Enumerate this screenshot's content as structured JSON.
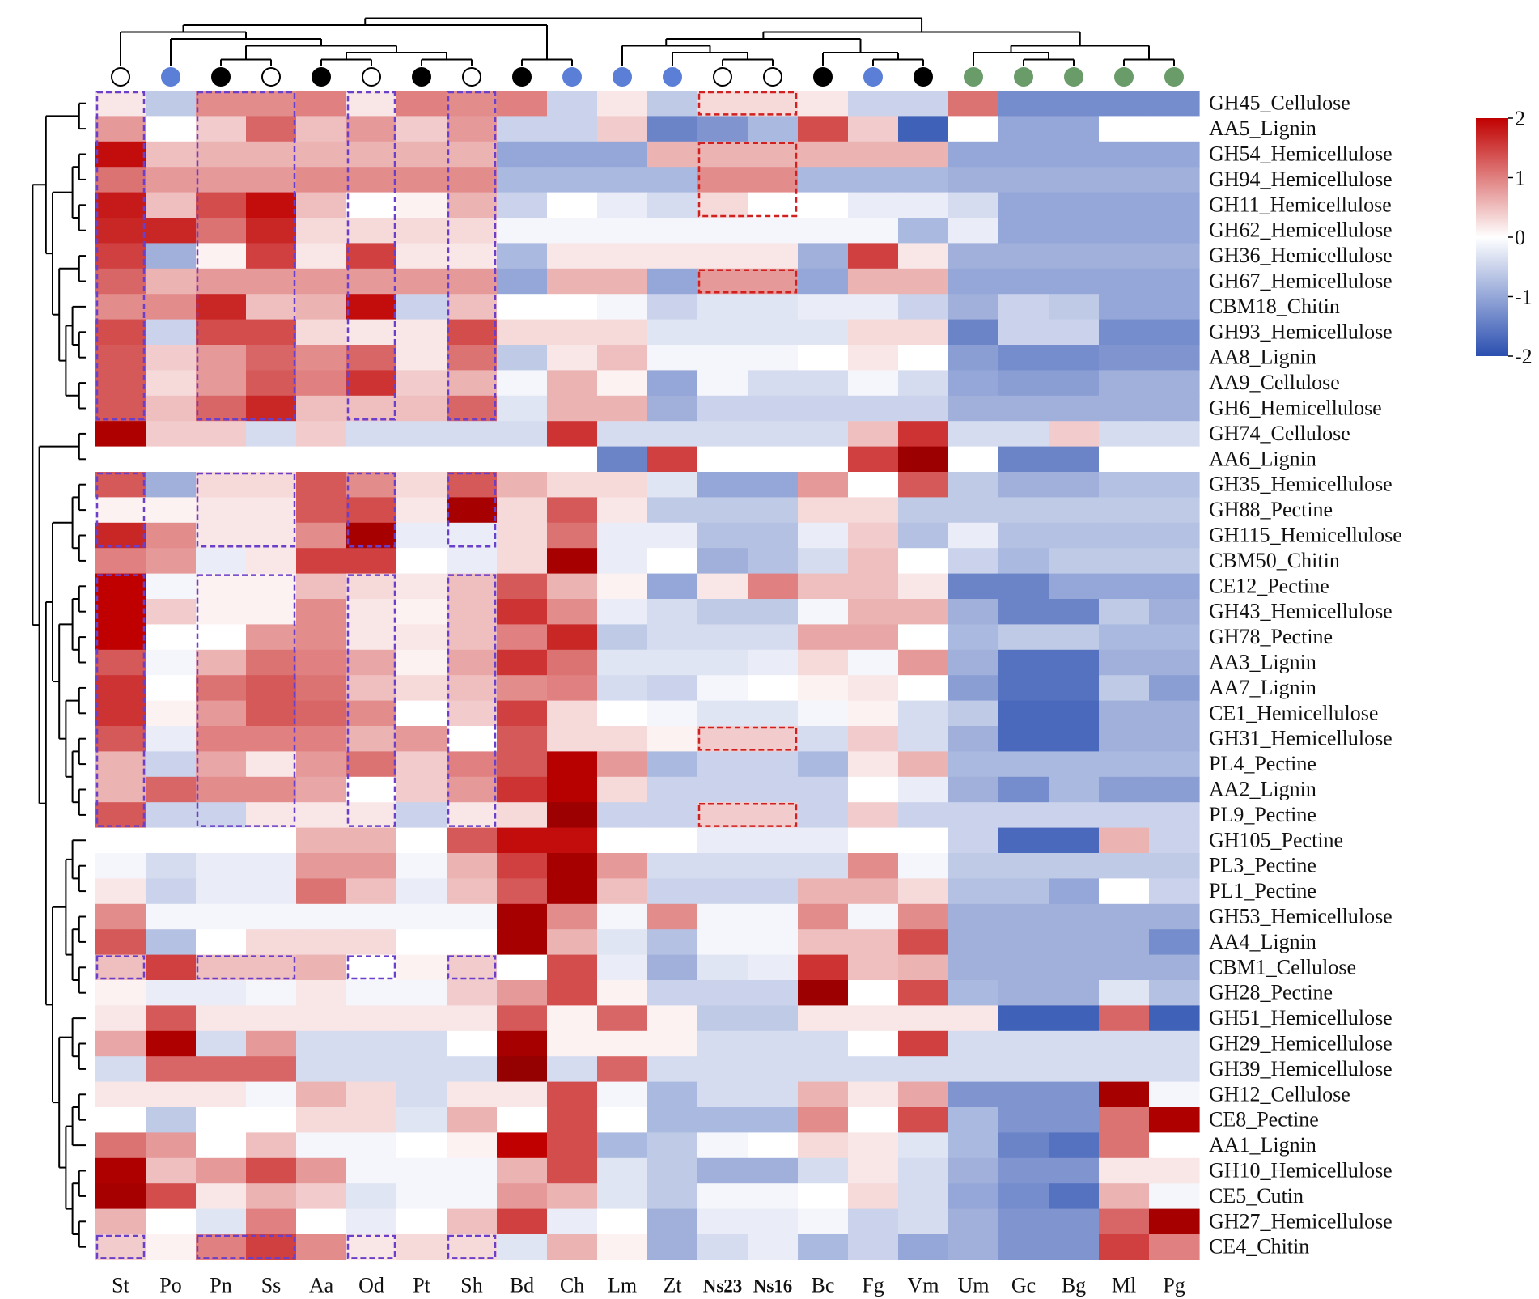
{
  "chart_data": {
    "type": "heatmap",
    "title": "",
    "columns": [
      "St",
      "Po",
      "Pn",
      "Ss",
      "Aa",
      "Od",
      "Pt",
      "Sh",
      "Bd",
      "Ch",
      "Lm",
      "Zt",
      "Ns23",
      "Ns16",
      "Bc",
      "Fg",
      "Vm",
      "Um",
      "Gc",
      "Bg",
      "Ml",
      "Pg"
    ],
    "bold_columns": [
      "Ns23",
      "Ns16"
    ],
    "column_markers": [
      "open",
      "blue",
      "black",
      "open",
      "black",
      "open",
      "black",
      "open",
      "black",
      "blue",
      "blue",
      "blue",
      "open",
      "open",
      "black",
      "blue",
      "black",
      "green",
      "green",
      "green",
      "green",
      "green"
    ],
    "marker_colors": {
      "black": "#000000",
      "blue": "#5b7fd6",
      "green": "#6a9c6a",
      "open": "#ffffff"
    },
    "rows": [
      "GH45_Cellulose",
      "AA5_Lignin",
      "GH54_Hemicellulose",
      "GH94_Hemicellulose",
      "GH11_Hemicellulose",
      "GH62_Hemicellulose",
      "GH36_Hemicellulose",
      "GH67_Hemicellulose",
      "CBM18_Chitin",
      "GH93_Hemicellulose",
      "AA8_Lignin",
      "AA9_Cellulose",
      "GH6_Hemicellulose",
      "GH74_Cellulose",
      "AA6_Lignin",
      "GH35_Hemicellulose",
      "GH88_Pectine",
      "GH115_Hemicellulose",
      "CBM50_Chitin",
      "CE12_Pectine",
      "GH43_Hemicellulose",
      "GH78_Pectine",
      "AA3_Lignin",
      "AA7_Lignin",
      "CE1_Hemicellulose",
      "GH31_Hemicellulose",
      "PL4_Pectine",
      "AA2_Lignin",
      "PL9_Pectine",
      "GH105_Pectine",
      "PL3_Pectine",
      "PL1_Pectine",
      "GH53_Hemicellulose",
      "AA4_Lignin",
      "CBM1_Cellulose",
      "GH28_Pectine",
      "GH51_Hemicellulose",
      "GH29_Hemicellulose",
      "GH39_Hemicellulose",
      "GH12_Cellulose",
      "CE8_Pectine",
      "AA1_Lignin",
      "GH10_Hemicellulose",
      "CE5_Cutin",
      "GH27_Hemicellulose",
      "CE4_Chitin"
    ],
    "values": [
      [
        0.2,
        -0.6,
        0.9,
        0.9,
        1.0,
        0.2,
        1.0,
        0.9,
        1.0,
        -0.5,
        0.2,
        -0.6,
        0.3,
        0.3,
        0.2,
        -0.5,
        -0.5,
        1.1,
        -1.3,
        -1.3,
        -1.3,
        -1.3
      ],
      [
        0.8,
        0.0,
        0.4,
        1.2,
        0.5,
        0.8,
        0.4,
        0.8,
        -0.5,
        -0.5,
        0.4,
        -1.4,
        -1.2,
        -0.8,
        1.4,
        0.4,
        -1.8,
        0.0,
        -1.0,
        -1.0,
        0.0,
        0.0
      ],
      [
        1.9,
        0.5,
        0.6,
        0.6,
        0.6,
        0.6,
        0.6,
        0.6,
        -1.0,
        -1.0,
        -1.0,
        0.6,
        0.6,
        0.6,
        0.6,
        0.6,
        0.6,
        -1.0,
        -1.0,
        -1.0,
        -1.0,
        -1.0
      ],
      [
        1.1,
        0.8,
        0.8,
        0.8,
        0.9,
        0.9,
        0.9,
        0.9,
        -0.8,
        -0.8,
        -0.8,
        -0.8,
        0.9,
        0.9,
        -0.8,
        -0.8,
        -0.8,
        -0.9,
        -0.9,
        -0.9,
        -0.9,
        -0.9
      ],
      [
        1.8,
        0.5,
        1.4,
        1.9,
        0.5,
        0.0,
        0.1,
        0.6,
        -0.5,
        0.0,
        -0.2,
        -0.4,
        0.3,
        0.0,
        0.0,
        -0.2,
        -0.2,
        -0.4,
        -1.0,
        -1.0,
        -1.0,
        -1.0
      ],
      [
        1.7,
        1.7,
        1.1,
        1.7,
        0.3,
        0.3,
        0.3,
        0.3,
        -0.1,
        -0.1,
        -0.1,
        -0.1,
        -0.1,
        -0.1,
        -0.1,
        -0.1,
        -0.8,
        -0.2,
        -1.0,
        -1.0,
        -1.0,
        -1.0
      ],
      [
        1.5,
        -0.9,
        0.1,
        1.5,
        0.2,
        1.5,
        0.2,
        0.2,
        -0.8,
        0.2,
        0.2,
        0.2,
        0.2,
        0.2,
        -0.9,
        1.5,
        0.2,
        -0.9,
        -0.9,
        -0.9,
        -0.9,
        -0.9
      ],
      [
        1.2,
        0.6,
        0.8,
        0.8,
        0.8,
        0.8,
        0.8,
        0.8,
        -1.0,
        0.6,
        0.6,
        -1.0,
        0.8,
        0.8,
        -1.0,
        0.6,
        0.6,
        -1.0,
        -1.0,
        -1.0,
        -1.0,
        -1.0
      ],
      [
        0.9,
        0.9,
        1.7,
        0.5,
        0.6,
        1.9,
        -0.5,
        0.5,
        0.0,
        0.0,
        -0.1,
        -0.5,
        -0.3,
        -0.3,
        -0.2,
        -0.2,
        -0.5,
        -0.9,
        -0.5,
        -0.6,
        -1.0,
        -1.0
      ],
      [
        1.4,
        -0.5,
        1.4,
        1.4,
        0.3,
        0.2,
        0.2,
        1.4,
        0.3,
        0.3,
        0.3,
        -0.3,
        -0.3,
        -0.3,
        -0.3,
        0.3,
        0.3,
        -1.4,
        -0.5,
        -0.5,
        -1.3,
        -1.3
      ],
      [
        1.3,
        0.4,
        0.8,
        1.2,
        0.9,
        1.2,
        0.2,
        1.1,
        -0.6,
        0.2,
        0.5,
        -0.1,
        -0.1,
        -0.1,
        0.0,
        0.2,
        0.0,
        -1.1,
        -1.3,
        -1.3,
        -1.2,
        -1.2
      ],
      [
        1.3,
        0.3,
        0.8,
        1.3,
        1.0,
        1.6,
        0.4,
        0.6,
        -0.1,
        0.6,
        0.1,
        -1.0,
        -0.1,
        -0.4,
        -0.4,
        -0.1,
        -0.4,
        -1.0,
        -1.1,
        -1.1,
        -0.9,
        -0.9
      ],
      [
        1.3,
        0.5,
        1.2,
        1.7,
        0.5,
        0.5,
        0.5,
        1.2,
        -0.3,
        0.6,
        0.6,
        -0.9,
        -0.5,
        -0.5,
        -0.5,
        -0.5,
        -0.5,
        -0.9,
        -0.9,
        -0.9,
        -0.9,
        -0.9
      ],
      [
        2.2,
        0.4,
        0.4,
        -0.4,
        0.4,
        -0.4,
        -0.4,
        -0.4,
        -0.4,
        1.6,
        -0.4,
        -0.4,
        -0.4,
        -0.4,
        -0.4,
        0.5,
        1.6,
        -0.4,
        -0.4,
        0.4,
        -0.4,
        -0.4
      ],
      [
        0.0,
        0.0,
        0.0,
        0.0,
        0.0,
        0.0,
        0.0,
        0.0,
        0.0,
        0.0,
        -1.4,
        1.5,
        0.0,
        0.0,
        0.0,
        1.5,
        2.4,
        0.0,
        -1.4,
        -1.4,
        0.0,
        0.0
      ],
      [
        1.3,
        -0.9,
        0.3,
        0.3,
        1.3,
        0.9,
        0.3,
        1.3,
        0.6,
        0.3,
        0.3,
        -0.3,
        -1.0,
        -1.0,
        0.8,
        0.0,
        1.3,
        -0.6,
        -0.9,
        -0.9,
        -0.7,
        -0.7
      ],
      [
        0.1,
        0.1,
        0.2,
        0.2,
        1.3,
        1.4,
        0.2,
        2.3,
        0.3,
        1.3,
        0.2,
        -0.6,
        -0.6,
        -0.6,
        0.3,
        0.3,
        -0.6,
        -0.6,
        -0.6,
        -0.6,
        -0.6,
        -0.6
      ],
      [
        1.7,
        0.9,
        0.2,
        0.2,
        0.9,
        2.3,
        -0.2,
        -0.2,
        0.3,
        1.1,
        -0.2,
        -0.2,
        -0.7,
        -0.7,
        -0.2,
        0.4,
        -0.7,
        -0.2,
        -0.7,
        -0.7,
        -0.7,
        -0.7
      ],
      [
        1.0,
        0.8,
        -0.2,
        0.2,
        1.5,
        1.5,
        0.0,
        -0.2,
        0.3,
        2.3,
        -0.2,
        0.0,
        -0.9,
        -0.7,
        -0.4,
        0.5,
        0.0,
        -0.5,
        -0.8,
        -0.6,
        -0.6,
        -0.6
      ],
      [
        2.0,
        -0.1,
        0.1,
        0.1,
        0.5,
        0.3,
        0.2,
        0.5,
        1.3,
        0.6,
        0.1,
        -1.0,
        0.2,
        1.0,
        0.5,
        0.5,
        0.2,
        -1.4,
        -1.4,
        -1.0,
        -1.0,
        -1.0
      ],
      [
        2.0,
        0.4,
        0.1,
        0.1,
        0.9,
        0.2,
        0.1,
        0.5,
        1.6,
        0.9,
        -0.2,
        -0.4,
        -0.6,
        -0.6,
        -0.1,
        0.6,
        0.6,
        -0.9,
        -1.4,
        -1.4,
        -0.6,
        -0.9
      ],
      [
        2.0,
        0.0,
        0.0,
        0.8,
        0.9,
        0.2,
        0.2,
        0.5,
        1.0,
        1.7,
        -0.6,
        -0.4,
        -0.4,
        -0.4,
        0.7,
        0.7,
        0.0,
        -0.8,
        -0.6,
        -0.6,
        -0.8,
        -0.8
      ],
      [
        1.3,
        -0.1,
        0.6,
        1.1,
        1.0,
        0.7,
        0.1,
        0.7,
        1.6,
        1.1,
        -0.3,
        -0.3,
        -0.3,
        -0.2,
        0.3,
        -0.1,
        0.8,
        -0.9,
        -1.6,
        -1.6,
        -0.9,
        -0.9
      ],
      [
        1.6,
        0.0,
        1.1,
        1.3,
        1.1,
        0.5,
        0.3,
        0.5,
        0.9,
        1.0,
        -0.4,
        -0.5,
        -0.1,
        0.0,
        0.1,
        0.2,
        0.0,
        -1.1,
        -1.6,
        -1.6,
        -0.6,
        -1.1
      ],
      [
        1.6,
        0.1,
        0.8,
        1.3,
        1.2,
        0.9,
        0.0,
        0.4,
        1.5,
        0.3,
        0.0,
        -0.1,
        -0.3,
        -0.3,
        -0.1,
        0.1,
        -0.4,
        -0.6,
        -1.7,
        -1.7,
        -0.9,
        -0.9
      ],
      [
        1.3,
        -0.2,
        1.0,
        1.0,
        1.0,
        0.6,
        0.8,
        0.0,
        1.3,
        0.3,
        0.3,
        0.1,
        0.4,
        0.4,
        -0.4,
        0.4,
        -0.4,
        -0.9,
        -1.7,
        -1.7,
        -0.9,
        -0.9
      ],
      [
        0.6,
        -0.5,
        0.7,
        0.2,
        0.8,
        1.1,
        0.4,
        1.0,
        1.3,
        2.1,
        0.8,
        -0.8,
        -0.5,
        -0.5,
        -0.8,
        0.2,
        0.6,
        -0.8,
        -0.8,
        -0.8,
        -0.8,
        -0.8
      ],
      [
        0.6,
        1.2,
        0.9,
        0.9,
        0.7,
        0.0,
        0.4,
        0.8,
        1.6,
        2.1,
        0.3,
        -0.5,
        -0.5,
        -0.5,
        -0.5,
        0.0,
        -0.2,
        -0.9,
        -1.3,
        -0.8,
        -1.1,
        -1.1
      ],
      [
        1.3,
        -0.5,
        -0.5,
        0.2,
        0.2,
        0.2,
        -0.5,
        0.2,
        0.3,
        2.4,
        -0.5,
        -0.5,
        0.4,
        0.4,
        -0.5,
        0.4,
        -0.5,
        -0.5,
        -0.5,
        -0.5,
        -0.5,
        -0.5
      ],
      [
        0.0,
        0.0,
        0.0,
        0.0,
        0.6,
        0.6,
        0.0,
        1.3,
        1.9,
        1.9,
        0.0,
        0.0,
        -0.2,
        -0.2,
        -0.2,
        0.0,
        0.0,
        -0.5,
        -1.7,
        -1.7,
        0.6,
        -0.5
      ],
      [
        -0.1,
        -0.4,
        -0.2,
        -0.2,
        0.8,
        0.8,
        -0.1,
        0.6,
        1.5,
        2.3,
        0.8,
        -0.4,
        -0.4,
        -0.4,
        -0.4,
        0.9,
        -0.1,
        -0.6,
        -0.6,
        -0.6,
        -0.6,
        -0.6
      ],
      [
        0.2,
        -0.5,
        -0.2,
        -0.2,
        1.1,
        0.5,
        -0.2,
        0.5,
        1.3,
        2.3,
        0.5,
        -0.5,
        -0.5,
        -0.5,
        0.6,
        0.6,
        0.3,
        -0.7,
        -0.7,
        -1.0,
        0.0,
        -0.5
      ],
      [
        0.9,
        -0.1,
        -0.1,
        -0.1,
        -0.1,
        -0.1,
        -0.1,
        -0.1,
        2.3,
        0.9,
        -0.1,
        0.9,
        -0.1,
        -0.1,
        0.9,
        -0.1,
        0.9,
        -0.9,
        -0.9,
        -0.9,
        -0.9,
        -0.9
      ],
      [
        1.3,
        -0.7,
        0.0,
        0.3,
        0.3,
        0.3,
        0.0,
        0.0,
        2.3,
        0.6,
        -0.3,
        -0.7,
        -0.1,
        -0.1,
        0.5,
        0.5,
        1.4,
        -0.9,
        -0.9,
        -0.9,
        -0.9,
        -1.3
      ],
      [
        0.5,
        1.5,
        0.5,
        0.5,
        0.6,
        0.0,
        0.1,
        0.4,
        0.0,
        1.4,
        -0.2,
        -0.9,
        -0.3,
        -0.2,
        1.6,
        0.5,
        0.6,
        -0.9,
        -0.9,
        -0.9,
        -0.9,
        -0.9
      ],
      [
        0.1,
        -0.2,
        -0.2,
        -0.1,
        0.2,
        -0.1,
        -0.1,
        0.4,
        0.8,
        1.4,
        0.1,
        -0.5,
        -0.5,
        -0.5,
        2.4,
        0.0,
        1.4,
        -0.8,
        -0.9,
        -0.9,
        -0.3,
        -0.7
      ],
      [
        0.2,
        1.3,
        0.2,
        0.2,
        0.2,
        0.2,
        0.2,
        0.2,
        1.3,
        0.1,
        1.2,
        0.1,
        -0.6,
        -0.6,
        0.2,
        0.2,
        0.2,
        0.2,
        -1.8,
        -1.8,
        1.2,
        -1.8
      ],
      [
        0.7,
        2.2,
        -0.4,
        0.8,
        -0.4,
        -0.4,
        -0.4,
        0.0,
        2.3,
        0.1,
        0.1,
        0.1,
        -0.4,
        -0.4,
        -0.4,
        0.0,
        1.5,
        -0.4,
        -0.4,
        -0.4,
        -0.4,
        -0.4
      ],
      [
        -0.4,
        1.2,
        1.2,
        1.2,
        -0.4,
        -0.4,
        -0.4,
        -0.4,
        2.5,
        -0.4,
        1.2,
        -0.4,
        -0.4,
        -0.4,
        -0.4,
        -0.4,
        -0.4,
        -0.4,
        -0.4,
        -0.4,
        -0.4,
        -0.4
      ],
      [
        0.2,
        0.2,
        0.2,
        -0.1,
        0.6,
        0.3,
        -0.4,
        0.2,
        0.2,
        1.4,
        -0.1,
        -0.8,
        -0.4,
        -0.4,
        0.6,
        0.2,
        0.7,
        -1.2,
        -1.2,
        -1.2,
        2.3,
        -0.1
      ],
      [
        0.0,
        -0.6,
        0.0,
        0.0,
        0.3,
        0.3,
        -0.3,
        0.6,
        0.0,
        1.4,
        0.0,
        -0.8,
        -0.8,
        -0.8,
        0.9,
        0.0,
        1.4,
        -0.8,
        -1.2,
        -1.2,
        1.1,
        2.2
      ],
      [
        1.1,
        0.8,
        0.0,
        0.5,
        -0.1,
        -0.1,
        0.0,
        0.1,
        2.0,
        1.4,
        -0.8,
        -0.6,
        -0.1,
        0.0,
        0.3,
        0.2,
        -0.3,
        -0.8,
        -1.4,
        -1.6,
        1.1,
        0.0
      ],
      [
        2.2,
        0.5,
        0.8,
        1.4,
        0.8,
        -0.1,
        -0.1,
        -0.1,
        0.6,
        1.4,
        -0.3,
        -0.6,
        -0.9,
        -0.9,
        -0.4,
        0.2,
        -0.4,
        -0.9,
        -1.2,
        -1.2,
        0.2,
        0.2
      ],
      [
        2.3,
        1.4,
        0.2,
        0.6,
        0.4,
        -0.3,
        -0.1,
        -0.1,
        0.8,
        0.6,
        -0.3,
        -0.6,
        -0.1,
        -0.1,
        0.0,
        0.3,
        -0.4,
        -1.0,
        -1.3,
        -1.6,
        0.6,
        -0.1
      ],
      [
        0.6,
        0.0,
        -0.3,
        1.0,
        0.0,
        -0.2,
        0.0,
        0.5,
        1.5,
        -0.2,
        0.0,
        -0.9,
        -0.2,
        -0.2,
        -0.1,
        -0.5,
        -0.4,
        -0.9,
        -1.2,
        -1.2,
        1.2,
        2.3
      ],
      [
        0.4,
        0.1,
        1.0,
        1.5,
        0.9,
        0.2,
        0.3,
        0.3,
        -0.3,
        0.6,
        0.1,
        -0.9,
        -0.4,
        -0.2,
        -0.8,
        -0.5,
        -1.0,
        -0.9,
        -1.2,
        -1.2,
        1.5,
        1.0
      ]
    ],
    "color_scale": {
      "min": -2,
      "max": 2,
      "low": "#2b4fb0",
      "mid": "#ffffff",
      "high": "#c00000"
    },
    "colorbar_ticks": [
      "2",
      "1",
      "0",
      "-1",
      "-2"
    ],
    "colorbar_values": [
      2,
      1,
      0,
      -1,
      -2
    ],
    "highlight_boxes": [
      {
        "color": "#6a3fc9",
        "c0": 0,
        "c1": 0,
        "r0": 0,
        "r1": 12
      },
      {
        "color": "#6a3fc9",
        "c0": 2,
        "c1": 3,
        "r0": 0,
        "r1": 12
      },
      {
        "color": "#6a3fc9",
        "c0": 5,
        "c1": 5,
        "r0": 0,
        "r1": 12
      },
      {
        "color": "#6a3fc9",
        "c0": 7,
        "c1": 7,
        "r0": 0,
        "r1": 12
      },
      {
        "color": "#6a3fc9",
        "c0": 0,
        "c1": 0,
        "r0": 15,
        "r1": 17
      },
      {
        "color": "#6a3fc9",
        "c0": 2,
        "c1": 3,
        "r0": 15,
        "r1": 17
      },
      {
        "color": "#6a3fc9",
        "c0": 5,
        "c1": 5,
        "r0": 15,
        "r1": 17
      },
      {
        "color": "#6a3fc9",
        "c0": 7,
        "c1": 7,
        "r0": 15,
        "r1": 17
      },
      {
        "color": "#6a3fc9",
        "c0": 0,
        "c1": 0,
        "r0": 19,
        "r1": 28
      },
      {
        "color": "#6a3fc9",
        "c0": 2,
        "c1": 3,
        "r0": 19,
        "r1": 28
      },
      {
        "color": "#6a3fc9",
        "c0": 5,
        "c1": 5,
        "r0": 19,
        "r1": 28
      },
      {
        "color": "#6a3fc9",
        "c0": 7,
        "c1": 7,
        "r0": 19,
        "r1": 28
      },
      {
        "color": "#6a3fc9",
        "c0": 0,
        "c1": 0,
        "r0": 34,
        "r1": 34
      },
      {
        "color": "#6a3fc9",
        "c0": 2,
        "c1": 3,
        "r0": 34,
        "r1": 34
      },
      {
        "color": "#6a3fc9",
        "c0": 5,
        "c1": 5,
        "r0": 34,
        "r1": 34
      },
      {
        "color": "#6a3fc9",
        "c0": 7,
        "c1": 7,
        "r0": 34,
        "r1": 34
      },
      {
        "color": "#6a3fc9",
        "c0": 0,
        "c1": 0,
        "r0": 45,
        "r1": 45
      },
      {
        "color": "#6a3fc9",
        "c0": 2,
        "c1": 3,
        "r0": 45,
        "r1": 45
      },
      {
        "color": "#6a3fc9",
        "c0": 5,
        "c1": 5,
        "r0": 45,
        "r1": 45
      },
      {
        "color": "#6a3fc9",
        "c0": 7,
        "c1": 7,
        "r0": 45,
        "r1": 45
      },
      {
        "color": "#d02020",
        "c0": 12,
        "c1": 13,
        "r0": 0,
        "r1": 0
      },
      {
        "color": "#d02020",
        "c0": 12,
        "c1": 13,
        "r0": 2,
        "r1": 4
      },
      {
        "color": "#d02020",
        "c0": 12,
        "c1": 13,
        "r0": 7,
        "r1": 7
      },
      {
        "color": "#d02020",
        "c0": 12,
        "c1": 13,
        "r0": 25,
        "r1": 25
      },
      {
        "color": "#d02020",
        "c0": 12,
        "c1": 13,
        "r0": 28,
        "r1": 28
      }
    ]
  }
}
